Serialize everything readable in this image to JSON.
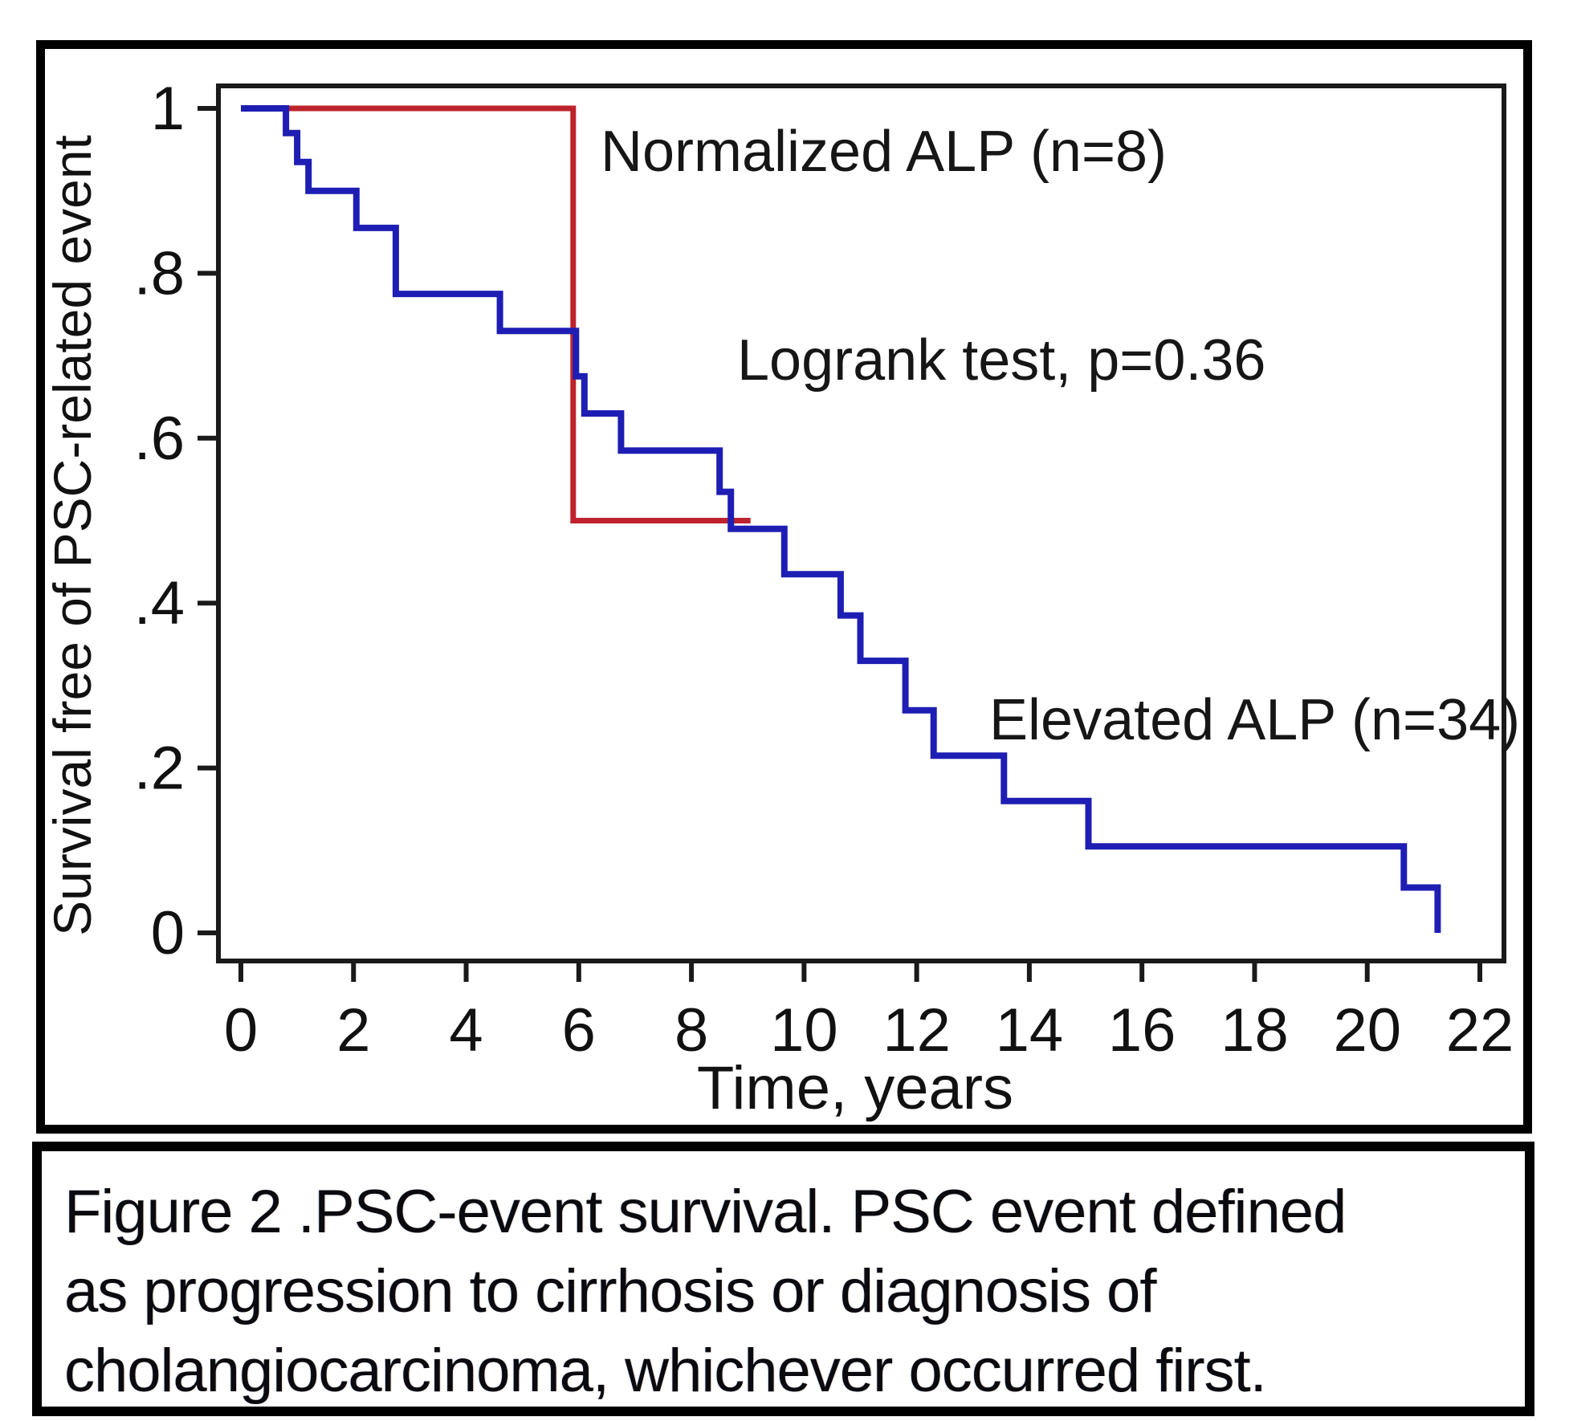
{
  "figure": {
    "caption_lines": [
      "Figure 2 .PSC-event survival. PSC event defined",
      "as progression to cirrhosis or diagnosis of",
      "cholangiocarcinoma, whichever occurred first."
    ]
  },
  "chart_data": {
    "type": "line",
    "subtype": "kaplan-meier-step",
    "title": "",
    "xlabel": "Time, years",
    "ylabel": "Survival free of PSC-related event",
    "xlim": [
      0,
      22
    ],
    "ylim": [
      0,
      1
    ],
    "grid": false,
    "legend_position": "inline-annotations",
    "x_ticks": [
      0,
      2,
      4,
      6,
      8,
      10,
      12,
      14,
      16,
      18,
      20,
      22
    ],
    "y_ticks": [
      {
        "value": 1.0,
        "label": "1"
      },
      {
        "value": 0.8,
        "label": ".8"
      },
      {
        "value": 0.6,
        "label": ".6"
      },
      {
        "value": 0.4,
        "label": ".4"
      },
      {
        "value": 0.2,
        "label": ".2"
      },
      {
        "value": 0.0,
        "label": "0"
      }
    ],
    "annotations": [
      {
        "id": "normalized-label",
        "text": "Normalized ALP (n=8)"
      },
      {
        "id": "logrank-note",
        "text": "Logrank test, p=0.36"
      },
      {
        "id": "elevated-label",
        "text": "Elevated ALP (n=34)"
      }
    ],
    "series": [
      {
        "id": "normalized-alp",
        "name": "Normalized ALP (n=8)",
        "color": "#be232d",
        "stroke_width": 7,
        "step_points": [
          [
            0,
            1.0
          ],
          [
            5.9,
            0.5
          ]
        ],
        "end_time": 9.05
      },
      {
        "id": "elevated-alp",
        "name": "Elevated ALP (n=34)",
        "color": "#1e1eb4",
        "stroke_width": 8,
        "step_points": [
          [
            0,
            1.0
          ],
          [
            0.8,
            0.97
          ],
          [
            1.0,
            0.935
          ],
          [
            1.2,
            0.9
          ],
          [
            2.05,
            0.855
          ],
          [
            2.75,
            0.775
          ],
          [
            4.6,
            0.73
          ],
          [
            5.95,
            0.675
          ],
          [
            6.1,
            0.63
          ],
          [
            6.75,
            0.585
          ],
          [
            8.5,
            0.535
          ],
          [
            8.7,
            0.49
          ],
          [
            9.65,
            0.435
          ],
          [
            10.65,
            0.385
          ],
          [
            11.0,
            0.33
          ],
          [
            11.8,
            0.27
          ],
          [
            12.3,
            0.215
          ],
          [
            13.55,
            0.16
          ],
          [
            15.05,
            0.105
          ],
          [
            20.65,
            0.055
          ],
          [
            21.25,
            0.0
          ]
        ],
        "end_time": 21.25
      }
    ]
  }
}
